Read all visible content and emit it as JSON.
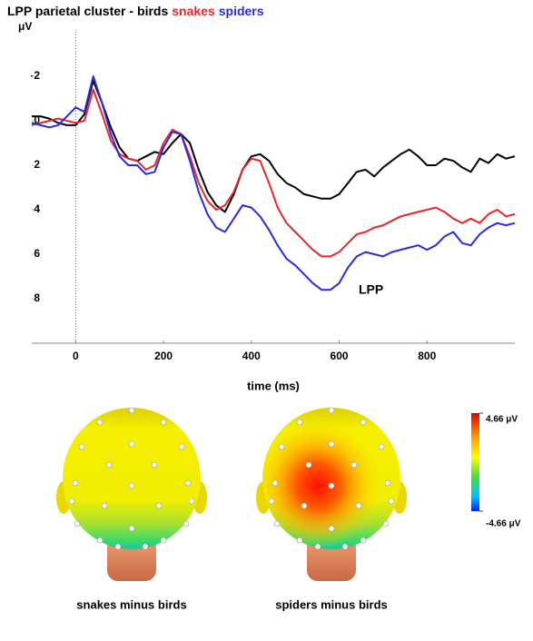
{
  "chart_data": {
    "type": "line",
    "title": "LPP parietal cluster -",
    "ylabel": "μV",
    "xlabel": "time (ms)",
    "annotations": [
      "LPP"
    ],
    "x": [
      -100,
      -80,
      -60,
      -40,
      -20,
      0,
      20,
      40,
      60,
      80,
      100,
      120,
      140,
      160,
      180,
      200,
      220,
      240,
      260,
      280,
      300,
      320,
      340,
      360,
      380,
      400,
      420,
      440,
      460,
      480,
      500,
      520,
      540,
      560,
      580,
      600,
      620,
      640,
      660,
      680,
      700,
      720,
      740,
      760,
      780,
      800,
      820,
      840,
      860,
      880,
      900,
      920,
      940,
      960,
      980,
      1000
    ],
    "series": [
      {
        "name": "birds",
        "color": "#000000",
        "values": [
          -0.2,
          -0.2,
          -0.1,
          0.1,
          0.2,
          0.2,
          -0.3,
          -1.8,
          -0.8,
          0.3,
          1.2,
          1.7,
          1.8,
          1.6,
          1.4,
          1.5,
          1.0,
          0.6,
          1.0,
          2.2,
          3.2,
          3.8,
          4.1,
          3.3,
          2.2,
          1.6,
          1.5,
          1.8,
          2.4,
          2.8,
          3.0,
          3.3,
          3.4,
          3.5,
          3.5,
          3.3,
          2.8,
          2.3,
          2.2,
          2.5,
          2.1,
          1.8,
          1.5,
          1.3,
          1.6,
          2.0,
          2.0,
          1.7,
          1.8,
          2.1,
          2.3,
          1.7,
          1.9,
          1.5,
          1.7,
          1.6
        ]
      },
      {
        "name": "snakes",
        "color": "#e8262a",
        "values": [
          0.2,
          0.1,
          0,
          -0.1,
          0,
          0.1,
          0,
          -1.4,
          -0.3,
          0.9,
          1.5,
          1.7,
          1.8,
          2.2,
          2.0,
          1.0,
          0.4,
          0.6,
          1.6,
          2.8,
          3.6,
          4.0,
          3.8,
          3.2,
          2.2,
          1.7,
          1.8,
          2.8,
          3.9,
          4.6,
          5.0,
          5.4,
          5.8,
          6.1,
          6.1,
          5.9,
          5.5,
          5.1,
          5.0,
          4.8,
          4.7,
          4.5,
          4.3,
          4.2,
          4.1,
          4.0,
          3.9,
          4.1,
          4.4,
          4.6,
          4.4,
          4.6,
          4.2,
          4.0,
          4.3,
          4.2
        ]
      },
      {
        "name": "spiders",
        "color": "#2a2ae0",
        "values": [
          0.1,
          0.2,
          0.3,
          0.2,
          -0.2,
          -0.6,
          -0.4,
          -2.0,
          -0.8,
          0.6,
          1.6,
          2.0,
          2.0,
          2.4,
          2.3,
          1.2,
          0.5,
          0.6,
          1.8,
          3.2,
          4.2,
          4.8,
          5.0,
          4.4,
          3.8,
          3.9,
          4.3,
          4.9,
          5.6,
          6.2,
          6.5,
          6.9,
          7.3,
          7.6,
          7.6,
          7.3,
          6.6,
          6.1,
          5.9,
          6.0,
          6.1,
          5.9,
          5.8,
          5.7,
          5.6,
          5.8,
          5.6,
          5.2,
          5.0,
          5.5,
          5.6,
          5.1,
          4.8,
          4.6,
          4.7,
          4.6
        ]
      }
    ],
    "xlim": [
      -100,
      1000
    ],
    "xticks": [
      0,
      200,
      400,
      600,
      800
    ],
    "ylim": [
      -4,
      10
    ],
    "y_inverted": true,
    "yticks": [
      -2,
      0,
      2,
      4,
      6,
      8
    ],
    "vline": 0
  },
  "topomaps": [
    {
      "label": "snakes minus birds"
    },
    {
      "label": "spiders minus birds"
    }
  ],
  "colorbar": {
    "lim": [
      -4.66,
      4.66
    ],
    "ticks": [
      {
        "value": 4.66,
        "label": "4.66 μV"
      },
      {
        "value": -4.66,
        "label": "-4.66 μV"
      }
    ]
  }
}
